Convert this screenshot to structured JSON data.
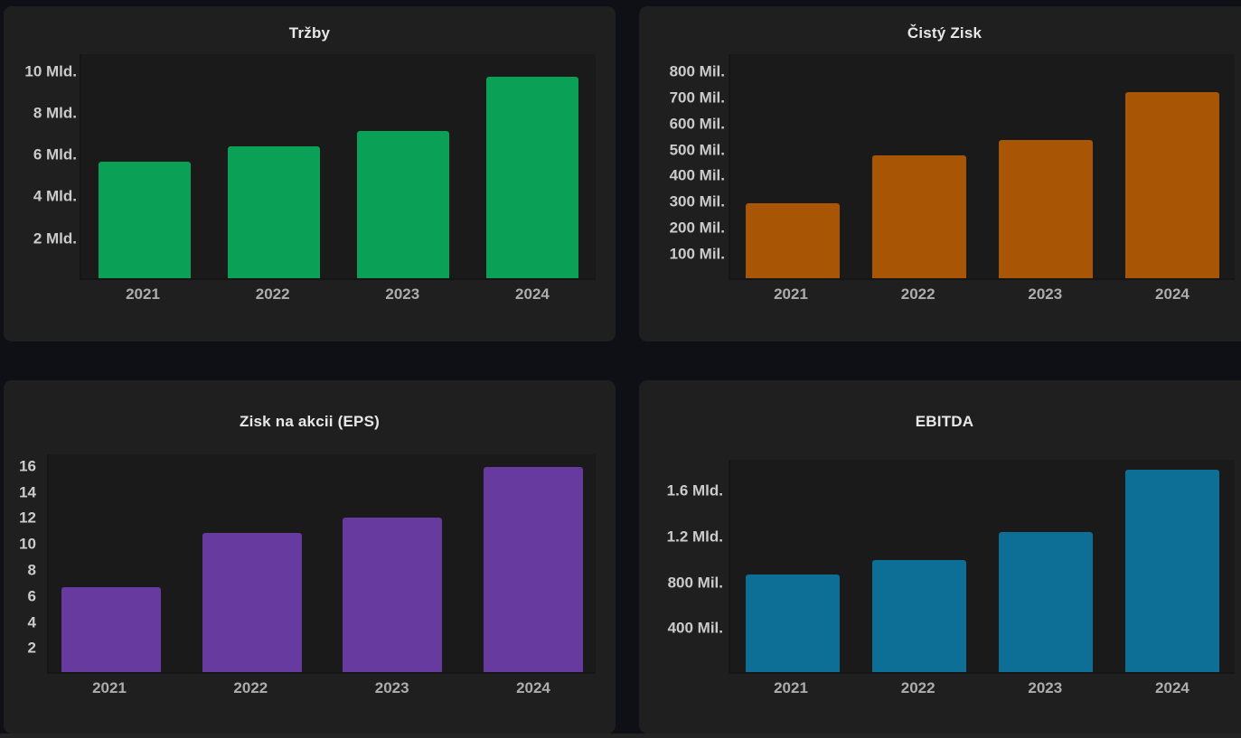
{
  "page": {
    "background": "#0e1016",
    "panel_background": "#1f1f20",
    "plot_background": "#1a1a1b",
    "axis_line_color": "#151517",
    "title_color": "#e8e8e8",
    "tick_label_color": "#cbcbcb",
    "category_label_color": "#adadad",
    "bottom_strip_color": "#232324"
  },
  "chart_data": [
    {
      "type": "bar",
      "title": "Tržby",
      "categories": [
        "2021",
        "2022",
        "2023",
        "2024"
      ],
      "values": [
        5.6,
        6.35,
        7.1,
        9.7
      ],
      "unit": "Mld.",
      "xlabel": "",
      "ylabel": "",
      "ylim": [
        0,
        10.8
      ],
      "grid": false,
      "legend": false,
      "bar_color": "#0aa055",
      "y_ticks": [
        {
          "value": 2,
          "label": "2 Mld."
        },
        {
          "value": 4,
          "label": "4 Mld."
        },
        {
          "value": 6,
          "label": "6 Mld."
        },
        {
          "value": 8,
          "label": "8 Mld."
        },
        {
          "value": 10,
          "label": "10 Mld."
        }
      ]
    },
    {
      "type": "bar",
      "title": "Čistý Zisk",
      "categories": [
        "2021",
        "2022",
        "2023",
        "2024"
      ],
      "values": [
        290,
        475,
        535,
        720
      ],
      "unit": "Mil.",
      "xlabel": "",
      "ylabel": "",
      "ylim": [
        0,
        865
      ],
      "grid": false,
      "legend": false,
      "bar_color": "#a85505",
      "y_ticks": [
        {
          "value": 100,
          "label": "100 Mil."
        },
        {
          "value": 200,
          "label": "200 Mil."
        },
        {
          "value": 300,
          "label": "300 Mil."
        },
        {
          "value": 400,
          "label": "400 Mil."
        },
        {
          "value": 500,
          "label": "500 Mil."
        },
        {
          "value": 600,
          "label": "600 Mil."
        },
        {
          "value": 700,
          "label": "700 Mil."
        },
        {
          "value": 800,
          "label": "800 Mil."
        }
      ]
    },
    {
      "type": "bar",
      "title": "Zisk na akcii (EPS)",
      "categories": [
        "2021",
        "2022",
        "2023",
        "2024"
      ],
      "values": [
        6.6,
        10.8,
        12.0,
        15.9
      ],
      "unit": "",
      "xlabel": "",
      "ylabel": "",
      "ylim": [
        0,
        16.9
      ],
      "grid": false,
      "legend": false,
      "bar_color": "#663a9e",
      "y_ticks": [
        {
          "value": 2,
          "label": "2"
        },
        {
          "value": 4,
          "label": "4"
        },
        {
          "value": 6,
          "label": "6"
        },
        {
          "value": 8,
          "label": "8"
        },
        {
          "value": 10,
          "label": "10"
        },
        {
          "value": 12,
          "label": "12"
        },
        {
          "value": 14,
          "label": "14"
        },
        {
          "value": 16,
          "label": "16"
        }
      ]
    },
    {
      "type": "bar",
      "title": "EBITDA",
      "categories": [
        "2021",
        "2022",
        "2023",
        "2024"
      ],
      "values": [
        860,
        990,
        1230,
        1780
      ],
      "unit": "Mil.",
      "xlabel": "",
      "ylabel": "",
      "ylim": [
        0,
        1870
      ],
      "grid": false,
      "legend": false,
      "bar_color": "#0d6e96",
      "y_ticks": [
        {
          "value": 400,
          "label": "400 Mil."
        },
        {
          "value": 800,
          "label": "800 Mil."
        },
        {
          "value": 1200,
          "label": "1.2 Mld."
        },
        {
          "value": 1600,
          "label": "1.6 Mld."
        }
      ]
    }
  ]
}
